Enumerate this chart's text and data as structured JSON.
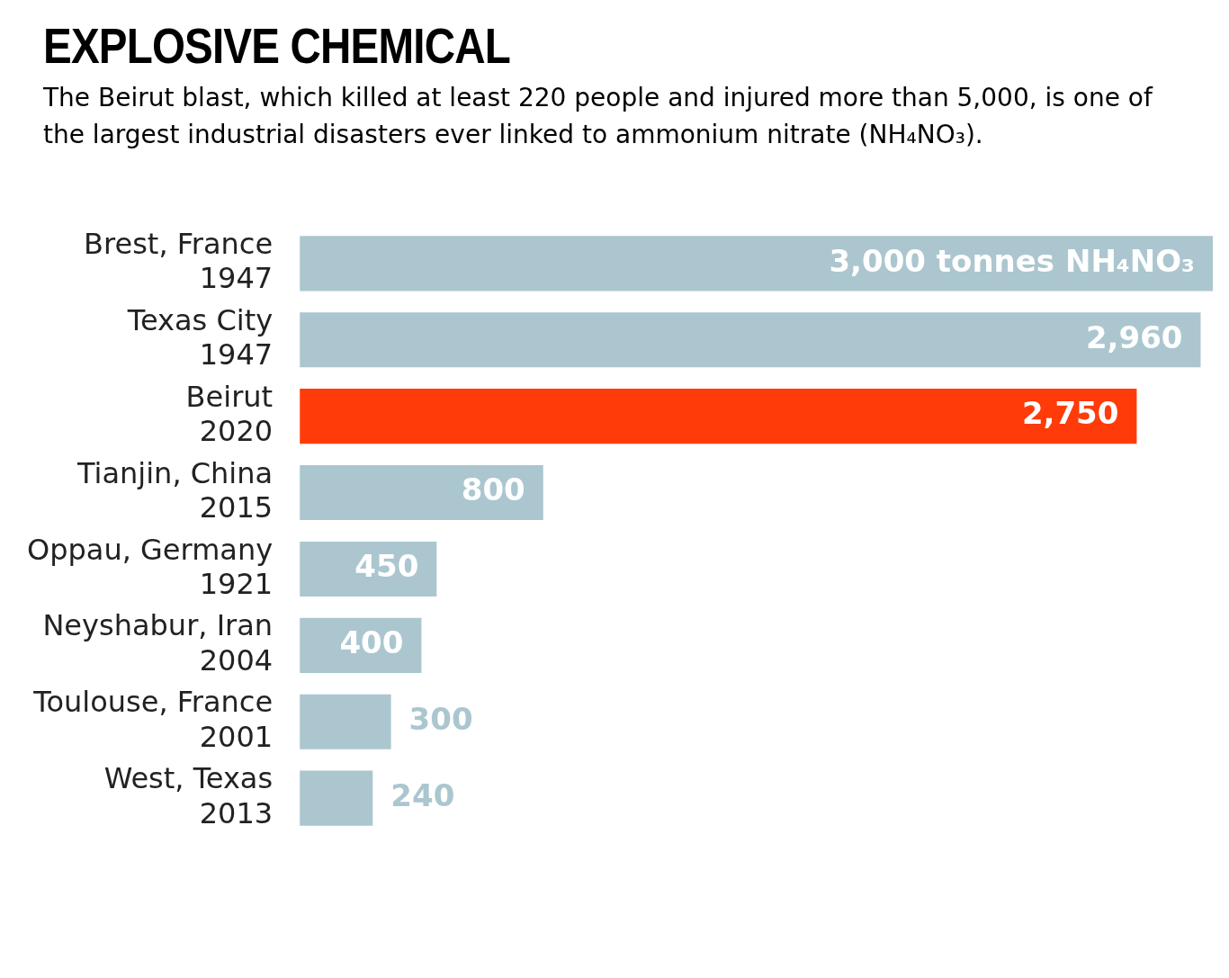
{
  "chart_data": {
    "type": "bar",
    "orientation": "horizontal",
    "title": "EXPLOSIVE CHEMICAL",
    "subtitle": "The Beirut blast, which killed at least 220 people and injured more than 5,000, is one of the largest industrial disasters ever linked to ammonium nitrate (NH₄NO₃).",
    "categories": [
      "Brest, France\n1947",
      "Texas City\n1947",
      "Beirut\n2020",
      "Tianjin, China\n2015",
      "Oppau, Germany\n1921",
      "Neyshabur, Iran\n2004",
      "Toulouse, France\n2001",
      "West, Texas\n2013"
    ],
    "values": [
      3000,
      2960,
      2750,
      800,
      450,
      400,
      300,
      240
    ],
    "colors": [
      "#abc6cf",
      "#abc6cf",
      "#ff3b0a",
      "#abc6cf",
      "#abc6cf",
      "#abc6cf",
      "#abc6cf",
      "#abc6cf"
    ],
    "value_labels": [
      "3,000 tonnes NH₄NO₃",
      "2,960",
      "2,750",
      "800",
      "450",
      "400",
      "300",
      "240"
    ],
    "legend": false
  }
}
